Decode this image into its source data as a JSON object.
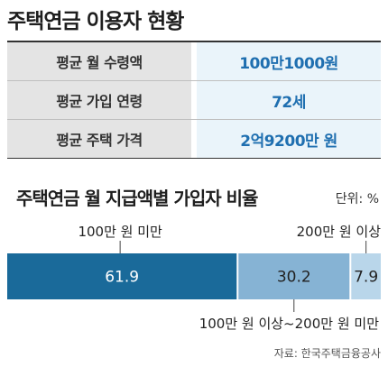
{
  "header": {
    "title": "주택연금 이용자 현황"
  },
  "summary": [
    {
      "label": "평균 월 수령액",
      "value": "100만1000원"
    },
    {
      "label": "평균 가입 연령",
      "value": "72세"
    },
    {
      "label": "평균 주택 가격",
      "value": "2억9200만 원"
    }
  ],
  "chart_data": {
    "type": "bar",
    "orientation": "horizontal-stacked",
    "title": "주택연금 월 지급액별 가입자 비율",
    "unit": "단위: %",
    "categories": [
      "100만 원 미만",
      "100만 원 이상~200만 원 미만",
      "200만 원 이상"
    ],
    "values": [
      61.9,
      30.2,
      7.9
    ],
    "value_labels": [
      "61.9",
      "30.2",
      "7.9"
    ],
    "colors": [
      "#1a6a9a",
      "#86b3d4",
      "#b9d6ea"
    ],
    "label_colors": [
      "#ffffff",
      "#222222",
      "#222222"
    ]
  },
  "footer": {
    "source": "자료: 한국주택금융공사"
  }
}
